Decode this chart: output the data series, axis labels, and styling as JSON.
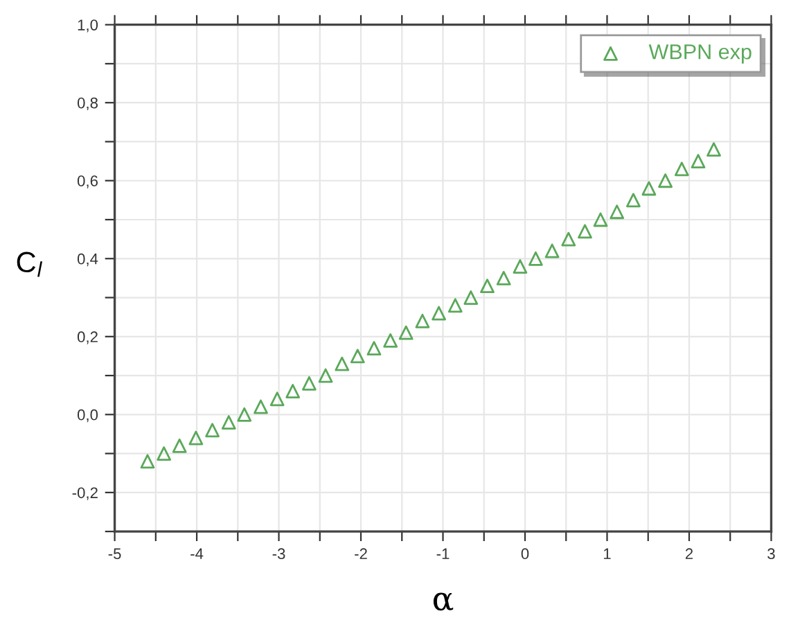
{
  "chart_data": {
    "type": "scatter",
    "xlabel": "α",
    "ylabel": "C$_{l}$",
    "xlim": [
      -5,
      3
    ],
    "ylim": [
      -0.3,
      1.0
    ],
    "xticks": [
      -5,
      {
        "value": -4.5,
        "label": null
      },
      -4,
      {
        "value": -3.5,
        "label": null
      },
      -3,
      {
        "value": -2.5,
        "label": null
      },
      -2,
      {
        "value": -1.5,
        "label": null
      },
      -1,
      {
        "value": -0.5,
        "label": null
      },
      0,
      {
        "value": 0.5,
        "label": null
      },
      1,
      {
        "value": 1.5,
        "label": null
      },
      2,
      {
        "value": 2.5,
        "label": null
      },
      3
    ],
    "yticks": [
      {
        "value": -0.3,
        "label": null
      },
      {
        "value": -0.2,
        "label": "-0,2"
      },
      {
        "value": -0.1,
        "label": null
      },
      {
        "value": 0.0,
        "label": "0,0"
      },
      {
        "value": 0.1,
        "label": null
      },
      {
        "value": 0.2,
        "label": "0,2"
      },
      {
        "value": 0.3,
        "label": null
      },
      {
        "value": 0.4,
        "label": "0,4"
      },
      {
        "value": 0.5,
        "label": null
      },
      {
        "value": 0.6,
        "label": "0,6"
      },
      {
        "value": 0.7,
        "label": null
      },
      {
        "value": 0.8,
        "label": "0,8"
      },
      {
        "value": 0.9,
        "label": null
      },
      {
        "value": 1.0,
        "label": "1,0"
      }
    ],
    "grid": true,
    "legend": "top right",
    "marker": "triangle",
    "series": [
      {
        "name": "WBPN exp",
        "color": "#5aa85a",
        "x": [
          -4.6,
          -4.4,
          -4.21,
          -4.01,
          -3.81,
          -3.61,
          -3.42,
          -3.22,
          -3.02,
          -2.83,
          -2.63,
          -2.43,
          -2.23,
          -2.04,
          -1.84,
          -1.64,
          -1.45,
          -1.25,
          -1.05,
          -0.85,
          -0.66,
          -0.46,
          -0.26,
          -0.06,
          0.13,
          0.33,
          0.53,
          0.73,
          0.92,
          1.12,
          1.32,
          1.51,
          1.71,
          1.91,
          2.11,
          2.3
        ],
        "values": [
          -0.12,
          -0.1,
          -0.08,
          -0.06,
          -0.04,
          -0.02,
          0.0,
          0.02,
          0.04,
          0.06,
          0.08,
          0.1,
          0.13,
          0.15,
          0.17,
          0.19,
          0.21,
          0.24,
          0.26,
          0.28,
          0.3,
          0.33,
          0.35,
          0.38,
          0.4,
          0.42,
          0.45,
          0.47,
          0.5,
          0.52,
          0.55,
          0.58,
          0.6,
          0.63,
          0.65,
          0.68
        ]
      }
    ]
  }
}
